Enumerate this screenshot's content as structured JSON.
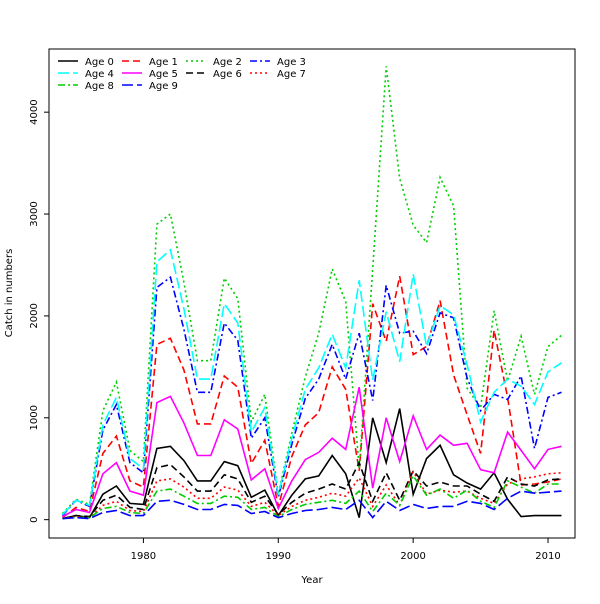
{
  "chart_data": {
    "type": "line",
    "title": "",
    "xlabel": "Year",
    "ylabel": "Catch in numbers",
    "xlim": [
      1973,
      2012
    ],
    "ylim": [
      -180,
      4620
    ],
    "x_ticks": [
      1980,
      1990,
      2000,
      2010
    ],
    "y_ticks": [
      0,
      1000,
      2000,
      3000,
      4000
    ],
    "legend_position": "top-left",
    "grid": false,
    "x": [
      1974,
      1975,
      1976,
      1977,
      1978,
      1979,
      1980,
      1981,
      1982,
      1983,
      1984,
      1985,
      1986,
      1987,
      1988,
      1989,
      1990,
      1991,
      1992,
      1993,
      1994,
      1995,
      1996,
      1997,
      1998,
      1999,
      2000,
      2001,
      2002,
      2003,
      2004,
      2005,
      2006,
      2007,
      2008,
      2009,
      2010,
      2011
    ],
    "series": [
      {
        "name": "Age 0",
        "color": "#000000",
        "dash": "solid",
        "values": [
          10,
          40,
          20,
          250,
          330,
          160,
          150,
          700,
          720,
          580,
          380,
          380,
          570,
          530,
          220,
          290,
          40,
          240,
          400,
          430,
          630,
          450,
          20,
          1000,
          560,
          1090,
          250,
          600,
          730,
          440,
          360,
          300,
          460,
          200,
          30,
          40,
          40,
          40
        ]
      },
      {
        "name": "Age 1",
        "color": "#FF0000",
        "dash": "dashed",
        "values": [
          20,
          120,
          80,
          650,
          820,
          380,
          320,
          1720,
          1780,
          1470,
          940,
          940,
          1410,
          1300,
          550,
          780,
          130,
          620,
          930,
          1050,
          1500,
          1280,
          480,
          2120,
          1750,
          2390,
          1620,
          1700,
          2150,
          1420,
          1030,
          650,
          1860,
          1200,
          340,
          350,
          370,
          400
        ]
      },
      {
        "name": "Age 2",
        "color": "#00CD00",
        "dash": "dotted",
        "values": [
          60,
          200,
          150,
          1070,
          1350,
          680,
          570,
          2900,
          3000,
          2330,
          1560,
          1560,
          2370,
          2170,
          960,
          1230,
          250,
          850,
          1400,
          1830,
          2460,
          2140,
          500,
          2460,
          4450,
          3350,
          2890,
          2720,
          3360,
          3080,
          1290,
          1100,
          2050,
          1360,
          1800,
          1230,
          1700,
          1810
        ]
      },
      {
        "name": "Age 3",
        "color": "#0000FF",
        "dash": "dashdot",
        "values": [
          40,
          190,
          130,
          880,
          1130,
          560,
          460,
          2280,
          2380,
          1870,
          1250,
          1250,
          1930,
          1760,
          800,
          1000,
          220,
          740,
          1190,
          1380,
          1720,
          1380,
          1830,
          1170,
          2300,
          1830,
          1850,
          1630,
          2030,
          1980,
          1390,
          1070,
          1230,
          1180,
          1410,
          700,
          1200,
          1250
        ]
      },
      {
        "name": "Age 4",
        "color": "#00FFFF",
        "dash": "longdash",
        "values": [
          50,
          190,
          140,
          930,
          1200,
          600,
          500,
          2530,
          2650,
          2070,
          1380,
          1380,
          2120,
          1930,
          860,
          1100,
          240,
          800,
          1280,
          1490,
          1820,
          1490,
          2350,
          1370,
          2040,
          1550,
          2410,
          1700,
          2100,
          2010,
          1520,
          960,
          1250,
          1380,
          1310,
          1130,
          1450,
          1540
        ]
      },
      {
        "name": "Age 5",
        "color": "#FF00FF",
        "dash": "solid",
        "values": [
          30,
          100,
          70,
          450,
          560,
          280,
          240,
          1150,
          1210,
          950,
          630,
          630,
          980,
          890,
          390,
          500,
          110,
          380,
          590,
          660,
          800,
          690,
          1300,
          310,
          1000,
          570,
          1020,
          690,
          830,
          730,
          750,
          490,
          460,
          860,
          680,
          500,
          690,
          720
        ]
      },
      {
        "name": "Age 6",
        "color": "#000000",
        "dash": "dashed",
        "values": [
          10,
          40,
          30,
          190,
          240,
          120,
          100,
          510,
          540,
          420,
          280,
          280,
          440,
          400,
          170,
          230,
          50,
          170,
          260,
          300,
          350,
          300,
          560,
          180,
          460,
          190,
          480,
          330,
          370,
          330,
          330,
          250,
          180,
          420,
          350,
          330,
          390,
          400
        ]
      },
      {
        "name": "Age 7",
        "color": "#FF0000",
        "dash": "dotted",
        "values": [
          10,
          30,
          20,
          140,
          180,
          90,
          80,
          380,
          400,
          320,
          210,
          210,
          320,
          290,
          130,
          170,
          40,
          130,
          190,
          220,
          260,
          230,
          410,
          130,
          340,
          140,
          470,
          250,
          290,
          270,
          280,
          210,
          160,
          350,
          400,
          420,
          450,
          460
        ]
      },
      {
        "name": "Age 8",
        "color": "#00CD00",
        "dash": "dashdot",
        "values": [
          10,
          20,
          20,
          110,
          130,
          70,
          60,
          280,
          300,
          230,
          160,
          160,
          230,
          220,
          100,
          120,
          30,
          100,
          150,
          170,
          190,
          160,
          280,
          80,
          260,
          140,
          430,
          240,
          300,
          210,
          290,
          180,
          120,
          380,
          320,
          260,
          350,
          350
        ]
      },
      {
        "name": "Age 9",
        "color": "#0000FF",
        "dash": "longdash",
        "values": [
          10,
          20,
          10,
          70,
          90,
          40,
          40,
          180,
          190,
          150,
          100,
          100,
          150,
          140,
          60,
          80,
          20,
          60,
          90,
          100,
          120,
          100,
          190,
          20,
          180,
          90,
          150,
          110,
          130,
          130,
          180,
          160,
          100,
          210,
          280,
          260,
          270,
          280
        ]
      }
    ]
  }
}
